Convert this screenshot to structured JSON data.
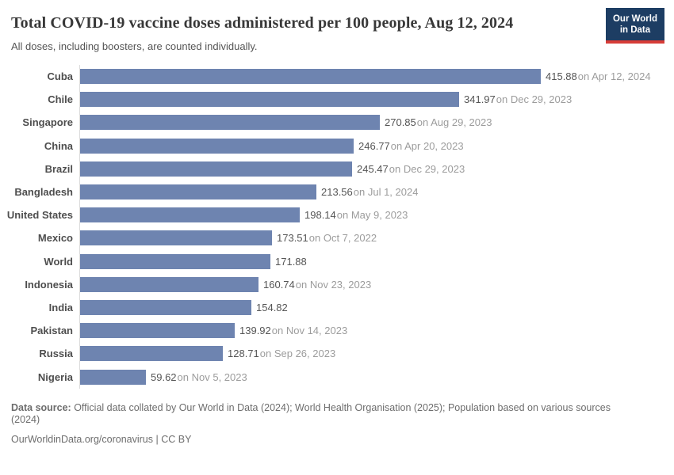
{
  "header": {
    "title": "Total COVID-19 vaccine doses administered per 100 people, Aug 12, 2024",
    "subtitle": "All doses, including boosters, are counted individually.",
    "logo": {
      "line1": "Our World",
      "line2": "in Data"
    }
  },
  "theme": {
    "bar_color": "#6e84b0",
    "title_color": "#383838",
    "subtitle_color": "#555555",
    "entity_label_color": "#4e4e4e",
    "value_color": "#555555",
    "date_color": "#9c9c9c",
    "footer_color": "#6d6d6d",
    "axis_line_color": "#dcdcdc",
    "logo_bg": "#1d3d63",
    "logo_accent": "#d73c37",
    "logo_text_color": "#ffffff"
  },
  "chart_data": {
    "type": "bar",
    "orientation": "horizontal",
    "title": "Total COVID-19 vaccine doses administered per 100 people, Aug 12, 2024",
    "subtitle": "All doses, including boosters, are counted individually.",
    "xlabel": "",
    "ylabel": "",
    "xlim": [
      0,
      415.88
    ],
    "grid": false,
    "legend": "none",
    "categories": [
      "Cuba",
      "Chile",
      "Singapore",
      "China",
      "Brazil",
      "Bangladesh",
      "United States",
      "Mexico",
      "World",
      "Indonesia",
      "India",
      "Pakistan",
      "Russia",
      "Nigeria"
    ],
    "values": [
      415.88,
      341.97,
      270.85,
      246.77,
      245.47,
      213.56,
      198.14,
      173.51,
      171.88,
      160.74,
      154.82,
      139.92,
      128.71,
      59.62
    ],
    "rows": [
      {
        "label": "Cuba",
        "value": 415.88,
        "value_text": "415.88",
        "date": "on Apr 12, 2024"
      },
      {
        "label": "Chile",
        "value": 341.97,
        "value_text": "341.97",
        "date": "on Dec 29, 2023"
      },
      {
        "label": "Singapore",
        "value": 270.85,
        "value_text": "270.85",
        "date": "on Aug 29, 2023"
      },
      {
        "label": "China",
        "value": 246.77,
        "value_text": "246.77",
        "date": "on Apr 20, 2023"
      },
      {
        "label": "Brazil",
        "value": 245.47,
        "value_text": "245.47",
        "date": "on Dec 29, 2023"
      },
      {
        "label": "Bangladesh",
        "value": 213.56,
        "value_text": "213.56",
        "date": "on Jul 1, 2024"
      },
      {
        "label": "United States",
        "value": 198.14,
        "value_text": "198.14",
        "date": "on May 9, 2023"
      },
      {
        "label": "Mexico",
        "value": 173.51,
        "value_text": "173.51",
        "date": "on Oct 7, 2022"
      },
      {
        "label": "World",
        "value": 171.88,
        "value_text": "171.88",
        "date": ""
      },
      {
        "label": "Indonesia",
        "value": 160.74,
        "value_text": "160.74",
        "date": "on Nov 23, 2023"
      },
      {
        "label": "India",
        "value": 154.82,
        "value_text": "154.82",
        "date": ""
      },
      {
        "label": "Pakistan",
        "value": 139.92,
        "value_text": "139.92",
        "date": "on Nov 14, 2023"
      },
      {
        "label": "Russia",
        "value": 128.71,
        "value_text": "128.71",
        "date": "on Sep 26, 2023"
      },
      {
        "label": "Nigeria",
        "value": 59.62,
        "value_text": "59.62",
        "date": "on Nov 5, 2023"
      }
    ]
  },
  "footer": {
    "source_label": "Data source:",
    "source_text": " Official data collated by Our World in Data (2024); World Health Organisation (2025); Population based on various sources",
    "source_wrap": "(2024)",
    "url": "OurWorldinData.org/coronavirus",
    "separator": " | ",
    "license": "CC BY"
  }
}
